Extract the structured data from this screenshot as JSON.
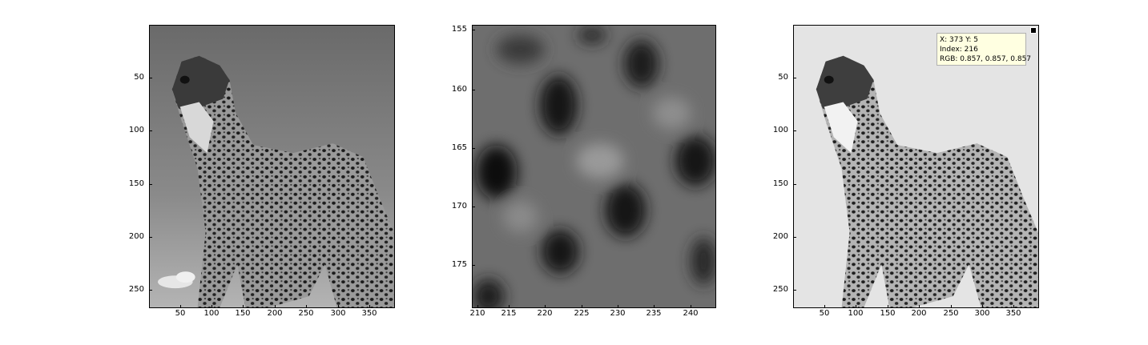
{
  "figure": {
    "panels": [
      {
        "id": "left",
        "image": "cheetah-grayscale",
        "xticks": [
          "50",
          "100",
          "150",
          "200",
          "250",
          "300",
          "350"
        ],
        "yticks": [
          "50",
          "100",
          "150",
          "200",
          "250"
        ]
      },
      {
        "id": "middle",
        "image": "cheetah-zoom-pixels",
        "xticks": [
          "210",
          "215",
          "220",
          "225",
          "230",
          "235",
          "240"
        ],
        "yticks": [
          "155",
          "160",
          "165",
          "170",
          "175"
        ]
      },
      {
        "id": "right",
        "image": "cheetah-brightened",
        "xticks": [
          "50",
          "100",
          "150",
          "200",
          "250",
          "300",
          "350"
        ],
        "yticks": [
          "50",
          "100",
          "150",
          "200",
          "250"
        ]
      }
    ],
    "datatip": {
      "line1": "X: 373 Y: 5",
      "line2": "Index: 216",
      "line3": "RGB: 0.857, 0.857, 0.857"
    }
  }
}
